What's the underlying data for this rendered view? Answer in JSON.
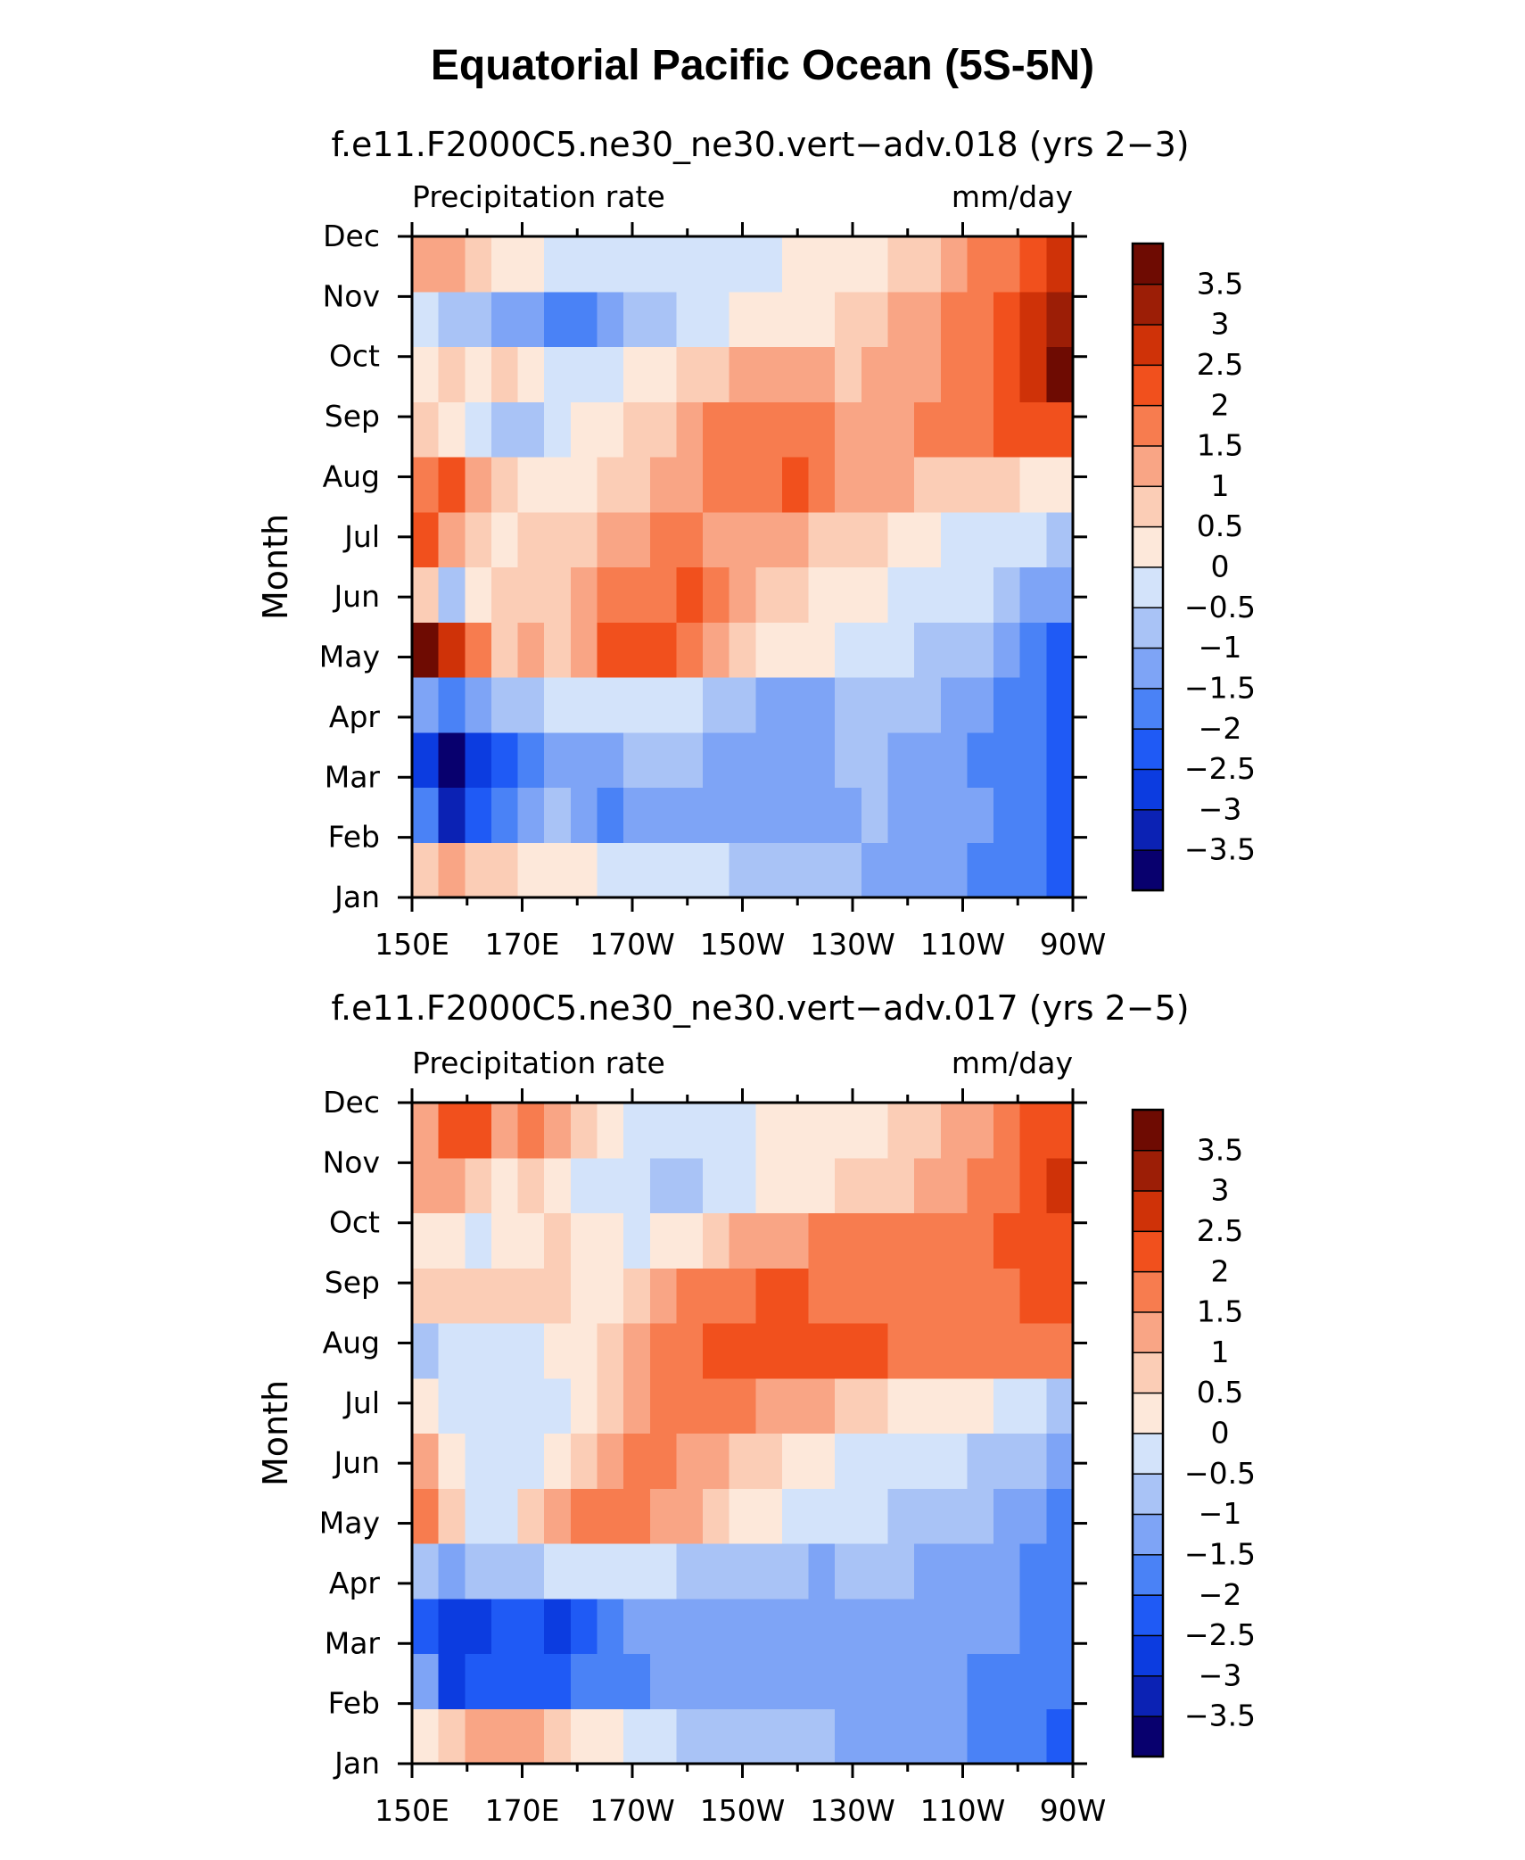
{
  "figure_title": "Equatorial Pacific Ocean (5S-5N)",
  "chart_data": [
    {
      "type": "heatmap",
      "title": "f.e11.F2000C5.ne30_ne30.vert-adv.018 (yrs 2-3)",
      "left_string": "Precipitation rate",
      "right_string": "mm/day",
      "ylabel": "Month",
      "x_ticks": [
        "150E",
        "170E",
        "170W",
        "150W",
        "130W",
        "110W",
        "90W"
      ],
      "y_ticks": [
        "Jan",
        "Feb",
        "Mar",
        "Apr",
        "May",
        "Jun",
        "Jul",
        "Aug",
        "Sep",
        "Oct",
        "Nov",
        "Dec"
      ],
      "x_lon_range": [
        150,
        270
      ],
      "colorbar_labels": [
        "-3.5",
        "-3",
        "-2.5",
        "-2",
        "-1.5",
        "-1",
        "-0.5",
        "0",
        "0.5",
        "1",
        "1.5",
        "2",
        "2.5",
        "3",
        "3.5"
      ],
      "levels": [
        -3.5,
        -3,
        -2.5,
        -2,
        -1.5,
        -1,
        -0.5,
        0,
        0.5,
        1,
        1.5,
        2,
        2.5,
        3,
        3.5
      ],
      "colors": [
        "#08006e",
        "#0b22b4",
        "#0c3ce0",
        "#1f5af5",
        "#4a82f6",
        "#7ea4f6",
        "#a9c3f6",
        "#d3e3fa",
        "#fde8da",
        "#fbcdb6",
        "#f9a585",
        "#f77c4f",
        "#f1501d",
        "#cf3208",
        "#9c1e06",
        "#6e0b02"
      ],
      "rows": [
        [
          0.6,
          1.0,
          0.8,
          0.5,
          0.3,
          0.2,
          0.0,
          -0.3,
          -0.5,
          -0.5,
          -0.5,
          -0.5,
          -0.6,
          -0.7,
          -0.8,
          -0.9,
          -1.0,
          -1.1,
          -1.2,
          -1.3,
          -1.5,
          -1.6,
          -1.8,
          -2.0,
          -2.1
        ],
        [
          -1.9,
          -3.2,
          -2.3,
          -1.6,
          -1.2,
          -1.0,
          -1.3,
          -1.6,
          -1.5,
          -1.3,
          -1.2,
          -1.2,
          -1.2,
          -1.2,
          -1.3,
          -1.2,
          -1.1,
          -1.0,
          -1.1,
          -1.2,
          -1.4,
          -1.5,
          -1.6,
          -1.8,
          -2.1
        ],
        [
          -2.7,
          -3.6,
          -2.7,
          -2.3,
          -1.6,
          -1.4,
          -1.3,
          -1.2,
          -1.0,
          -0.9,
          -0.8,
          -1.1,
          -1.3,
          -1.3,
          -1.2,
          -1.1,
          -1.0,
          -1.0,
          -1.1,
          -1.3,
          -1.4,
          -1.6,
          -1.8,
          -2.0,
          -2.2
        ],
        [
          -1.5,
          -2.0,
          -1.5,
          -1.0,
          -0.6,
          -0.5,
          -0.4,
          -0.3,
          -0.3,
          -0.4,
          -0.5,
          -0.7,
          -0.8,
          -1.1,
          -1.3,
          -1.2,
          -1.0,
          -0.9,
          -0.9,
          -1.0,
          -1.2,
          -1.4,
          -1.6,
          -1.9,
          -2.2
        ],
        [
          3.6,
          2.8,
          1.5,
          0.8,
          1.0,
          0.8,
          1.3,
          2.0,
          2.4,
          2.0,
          1.6,
          1.0,
          0.6,
          0.4,
          0.2,
          0.0,
          -0.2,
          -0.3,
          -0.4,
          -0.6,
          -0.8,
          -1.0,
          -1.3,
          -1.7,
          -2.1
        ],
        [
          0.6,
          -0.6,
          0.3,
          0.8,
          0.6,
          0.5,
          1.0,
          1.6,
          1.9,
          1.9,
          2.0,
          1.6,
          1.2,
          0.9,
          0.6,
          0.4,
          0.2,
          0.0,
          -0.1,
          -0.2,
          -0.3,
          -0.5,
          -0.8,
          -1.1,
          -1.5
        ],
        [
          2.1,
          1.4,
          0.5,
          0.2,
          0.5,
          0.8,
          0.9,
          1.1,
          1.3,
          1.5,
          1.6,
          1.4,
          1.2,
          1.1,
          1.0,
          0.9,
          0.7,
          0.5,
          0.3,
          0.1,
          -0.1,
          -0.2,
          -0.3,
          -0.5,
          -0.8
        ],
        [
          1.6,
          2.2,
          1.0,
          0.5,
          0.2,
          0.1,
          0.4,
          0.6,
          0.8,
          1.0,
          1.2,
          1.6,
          1.7,
          1.9,
          2.0,
          1.7,
          1.3,
          1.1,
          1.0,
          0.8,
          0.6,
          0.5,
          0.5,
          0.4,
          0.4
        ],
        [
          0.5,
          0.3,
          -0.2,
          -0.6,
          -0.8,
          -0.3,
          0.0,
          0.3,
          0.5,
          0.8,
          1.1,
          1.6,
          1.7,
          1.8,
          1.9,
          1.7,
          1.3,
          1.2,
          1.4,
          1.6,
          1.7,
          1.8,
          2.0,
          2.2,
          2.4
        ],
        [
          0.2,
          0.8,
          0.3,
          0.6,
          0.3,
          -0.1,
          -0.3,
          -0.2,
          0.1,
          0.3,
          0.5,
          0.9,
          1.0,
          1.1,
          1.1,
          1.0,
          0.9,
          1.0,
          1.1,
          1.3,
          1.5,
          1.8,
          2.3,
          2.8,
          3.5
        ],
        [
          -0.3,
          -0.6,
          -0.8,
          -1.2,
          -1.3,
          -1.6,
          -1.8,
          -1.4,
          -1.0,
          -0.6,
          -0.3,
          -0.2,
          0.0,
          0.1,
          0.2,
          0.3,
          0.5,
          0.8,
          1.0,
          1.3,
          1.6,
          1.9,
          2.2,
          2.6,
          3.2
        ],
        [
          1.0,
          1.3,
          0.9,
          0.4,
          0.1,
          -0.3,
          -0.4,
          -0.3,
          -0.2,
          -0.2,
          -0.1,
          -0.1,
          -0.1,
          -0.1,
          0.0,
          0.0,
          0.1,
          0.3,
          0.6,
          0.9,
          1.2,
          1.5,
          1.8,
          2.2,
          2.6
        ]
      ]
    },
    {
      "type": "heatmap",
      "title": "f.e11.F2000C5.ne30_ne30.vert-adv.017 (yrs 2-5)",
      "left_string": "Precipitation rate",
      "right_string": "mm/day",
      "ylabel": "Month",
      "x_ticks": [
        "150E",
        "170E",
        "170W",
        "150W",
        "130W",
        "110W",
        "90W"
      ],
      "y_ticks": [
        "Jan",
        "Feb",
        "Mar",
        "Apr",
        "May",
        "Jun",
        "Jul",
        "Aug",
        "Sep",
        "Oct",
        "Nov",
        "Dec"
      ],
      "x_lon_range": [
        150,
        270
      ],
      "colorbar_labels": [
        "-3.5",
        "-3",
        "-2.5",
        "-2",
        "-1.5",
        "-1",
        "-0.5",
        "0",
        "0.5",
        "1",
        "1.5",
        "2",
        "2.5",
        "3",
        "3.5"
      ],
      "levels": [
        -3.5,
        -3,
        -2.5,
        -2,
        -1.5,
        -1,
        -0.5,
        0,
        0.5,
        1,
        1.5,
        2,
        2.5,
        3,
        3.5
      ],
      "colors": [
        "#08006e",
        "#0b22b4",
        "#0c3ce0",
        "#1f5af5",
        "#4a82f6",
        "#7ea4f6",
        "#a9c3f6",
        "#d3e3fa",
        "#fde8da",
        "#fbcdb6",
        "#f9a585",
        "#f77c4f",
        "#f1501d",
        "#cf3208",
        "#9c1e06",
        "#6e0b02"
      ],
      "rows": [
        [
          0.3,
          0.8,
          1.3,
          1.2,
          1.0,
          0.6,
          0.3,
          0.0,
          -0.3,
          -0.5,
          -0.6,
          -0.6,
          -0.7,
          -0.8,
          -0.9,
          -1.0,
          -1.1,
          -1.1,
          -1.2,
          -1.3,
          -1.5,
          -1.6,
          -1.8,
          -2.0,
          -2.1
        ],
        [
          -1.5,
          -2.6,
          -2.5,
          -2.2,
          -2.4,
          -2.3,
          -2.0,
          -1.7,
          -1.6,
          -1.4,
          -1.2,
          -1.3,
          -1.4,
          -1.4,
          -1.3,
          -1.3,
          -1.2,
          -1.2,
          -1.2,
          -1.3,
          -1.4,
          -1.6,
          -1.8,
          -1.9,
          -2.0
        ],
        [
          -2.3,
          -2.8,
          -2.6,
          -2.4,
          -2.5,
          -2.6,
          -2.3,
          -1.7,
          -1.5,
          -1.3,
          -1.2,
          -1.2,
          -1.3,
          -1.3,
          -1.3,
          -1.2,
          -1.2,
          -1.1,
          -1.1,
          -1.2,
          -1.3,
          -1.4,
          -1.5,
          -1.7,
          -1.9
        ],
        [
          -1.0,
          -1.3,
          -1.0,
          -0.8,
          -0.6,
          -0.4,
          -0.2,
          -0.1,
          -0.1,
          -0.3,
          -0.6,
          -0.8,
          -0.9,
          -1.0,
          -1.0,
          -1.1,
          -1.0,
          -1.0,
          -1.0,
          -1.1,
          -1.2,
          -1.3,
          -1.5,
          -1.7,
          -1.9
        ],
        [
          1.8,
          0.6,
          -0.1,
          -0.4,
          0.5,
          1.2,
          1.5,
          1.6,
          1.5,
          1.3,
          1.0,
          0.7,
          0.4,
          0.1,
          -0.1,
          -0.3,
          -0.4,
          -0.5,
          -0.6,
          -0.7,
          -0.8,
          -1.0,
          -1.2,
          -1.5,
          -1.9
        ],
        [
          1.4,
          0.4,
          -0.3,
          -0.4,
          -0.2,
          0.1,
          0.6,
          1.4,
          1.7,
          1.6,
          1.4,
          1.1,
          0.8,
          0.5,
          0.2,
          0.0,
          -0.1,
          -0.2,
          -0.3,
          -0.4,
          -0.5,
          -0.6,
          -0.8,
          -1.0,
          -1.3
        ],
        [
          0.0,
          -0.3,
          -0.4,
          -0.2,
          -0.1,
          -0.3,
          0.3,
          0.9,
          1.4,
          1.6,
          1.7,
          1.7,
          1.6,
          1.4,
          1.2,
          1.0,
          0.8,
          0.6,
          0.4,
          0.2,
          0.1,
          0.0,
          -0.1,
          -0.3,
          -0.6
        ],
        [
          -0.6,
          -0.4,
          -0.2,
          -0.1,
          -0.2,
          0.0,
          0.2,
          0.6,
          1.1,
          1.6,
          1.9,
          2.1,
          2.1,
          2.2,
          2.3,
          2.1,
          2.0,
          2.0,
          1.9,
          1.8,
          1.7,
          1.6,
          1.6,
          1.6,
          1.6
        ],
        [
          0.6,
          0.5,
          0.7,
          0.8,
          0.7,
          0.5,
          0.4,
          0.4,
          0.6,
          1.0,
          1.5,
          1.8,
          1.9,
          2.0,
          2.0,
          1.9,
          1.8,
          1.8,
          1.8,
          1.8,
          1.8,
          1.8,
          1.9,
          2.0,
          2.2
        ],
        [
          0.3,
          0.1,
          -0.1,
          0.2,
          0.4,
          0.6,
          0.4,
          0.1,
          -0.1,
          0.1,
          0.4,
          0.8,
          1.1,
          1.3,
          1.4,
          1.5,
          1.5,
          1.6,
          1.7,
          1.8,
          1.8,
          1.9,
          2.0,
          2.2,
          2.4
        ],
        [
          1.1,
          1.3,
          0.6,
          0.4,
          0.5,
          0.4,
          -0.1,
          -0.3,
          -0.5,
          -0.7,
          -0.6,
          -0.4,
          -0.2,
          0.0,
          0.1,
          0.3,
          0.5,
          0.7,
          0.9,
          1.1,
          1.3,
          1.6,
          1.9,
          2.2,
          2.6
        ],
        [
          1.4,
          2.1,
          2.3,
          1.3,
          1.7,
          1.2,
          0.7,
          0.2,
          -0.1,
          -0.3,
          -0.3,
          -0.2,
          -0.1,
          0.0,
          0.0,
          0.0,
          0.1,
          0.3,
          0.5,
          0.8,
          1.1,
          1.4,
          1.7,
          2.0,
          2.3
        ]
      ]
    }
  ]
}
